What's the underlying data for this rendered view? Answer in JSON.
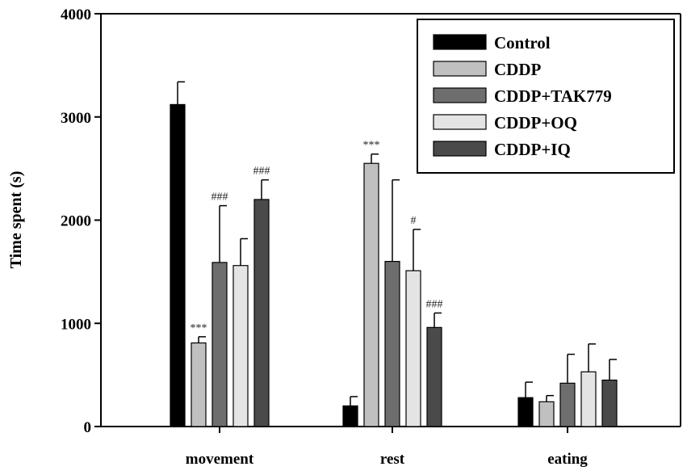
{
  "chart_data": {
    "type": "bar",
    "title": "",
    "xlabel": "",
    "ylabel": "Time spent (s)",
    "ylim": [
      0,
      4000
    ],
    "yticks": [
      0,
      1000,
      2000,
      3000,
      4000
    ],
    "grid": false,
    "legend_position": "top-right",
    "categories": [
      "movement",
      "rest",
      "eating"
    ],
    "series": [
      {
        "name": "Control",
        "color": "#000000",
        "values": [
          3120,
          200,
          280
        ],
        "errors": [
          220,
          90,
          150
        ],
        "annotations": [
          "",
          "",
          ""
        ]
      },
      {
        "name": "CDDP",
        "color": "#c0c0c0",
        "values": [
          810,
          2550,
          240
        ],
        "errors": [
          60,
          90,
          60
        ],
        "annotations": [
          "***",
          "***",
          ""
        ]
      },
      {
        "name": "CDDP+TAK779",
        "color": "#6e6e6e",
        "values": [
          1590,
          1600,
          420
        ],
        "errors": [
          550,
          790,
          280
        ],
        "annotations": [
          "###",
          "",
          ""
        ]
      },
      {
        "name": "CDDP+OQ",
        "color": "#e4e4e4",
        "values": [
          1560,
          1510,
          530
        ],
        "errors": [
          260,
          400,
          270
        ],
        "annotations": [
          "",
          "#",
          ""
        ]
      },
      {
        "name": "CDDP+IQ",
        "color": "#4a4a4a",
        "values": [
          2200,
          960,
          450
        ],
        "errors": [
          190,
          140,
          200
        ],
        "annotations": [
          "###",
          "###",
          ""
        ]
      }
    ]
  }
}
